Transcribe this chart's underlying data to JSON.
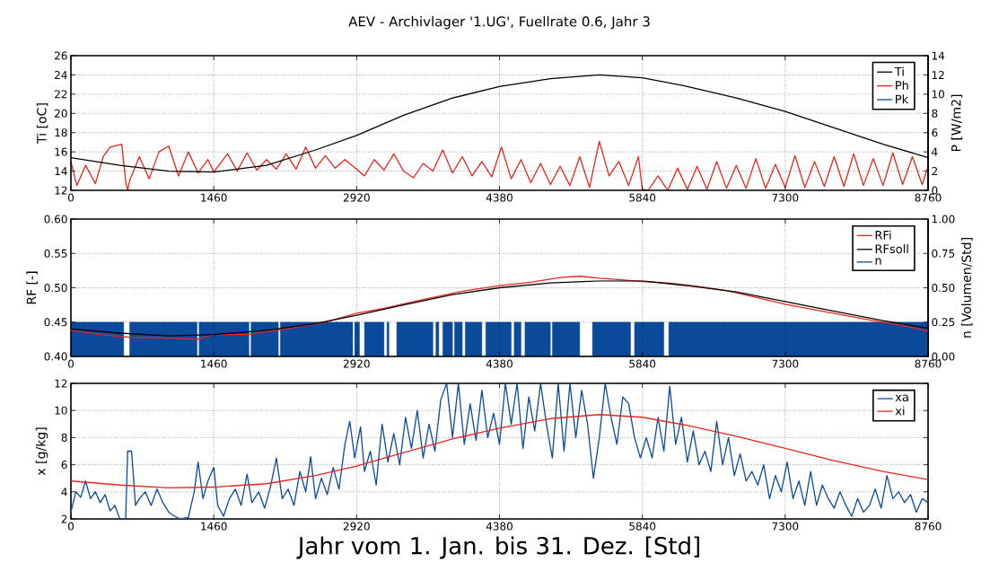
{
  "chart_data": [
    {
      "type": "line",
      "title": "AEV - Archivlager '1.UG', Fuellrate 0.6,  Jahr 3",
      "ylabel": "Ti  [oC]",
      "y2label": "P  [W/m2]",
      "xlim": [
        0,
        8760
      ],
      "xticks": [
        0,
        1460,
        2920,
        4380,
        5840,
        7300,
        8760
      ],
      "ylim": [
        12,
        26
      ],
      "yticks": [
        12,
        14,
        16,
        18,
        20,
        22,
        24,
        26
      ],
      "y2lim": [
        0,
        14
      ],
      "y2ticks": [
        0,
        2,
        4,
        6,
        8,
        10,
        12,
        14
      ],
      "grid": true,
      "legend": "top right",
      "series": [
        {
          "name": "Ti",
          "color": "#000000",
          "x": [
            0,
            500,
            1000,
            1460,
            2000,
            2500,
            2920,
            3400,
            3900,
            4380,
            4900,
            5400,
            5840,
            6300,
            6800,
            7300,
            7800,
            8300,
            8760
          ],
          "values": [
            15.4,
            14.6,
            14.0,
            13.9,
            14.6,
            16.2,
            17.7,
            19.8,
            21.6,
            22.8,
            23.6,
            24.0,
            23.7,
            22.8,
            21.6,
            20.2,
            18.5,
            16.8,
            15.4
          ]
        },
        {
          "name": "Ph",
          "color": "#e8251c",
          "axis": "y2",
          "x": [
            0,
            60,
            150,
            250,
            330,
            400,
            520,
            560,
            580,
            600,
            700,
            800,
            900,
            1000,
            1100,
            1200,
            1300,
            1400,
            1460,
            1600,
            1700,
            1800,
            1900,
            2000,
            2100,
            2200,
            2300,
            2400,
            2500,
            2600,
            2700,
            2800,
            2920,
            3000,
            3100,
            3200,
            3300,
            3400,
            3500,
            3600,
            3700,
            3800,
            3900,
            4000,
            4100,
            4200,
            4300,
            4400,
            4500,
            4600,
            4700,
            4800,
            4900,
            5000,
            5100,
            5200,
            5300,
            5400,
            5500,
            5600,
            5700,
            5800,
            5840,
            5900,
            6000,
            6100,
            6200,
            6300,
            6400,
            6500,
            6600,
            6700,
            6800,
            6900,
            7000,
            7100,
            7200,
            7300,
            7400,
            7500,
            7600,
            7700,
            7800,
            7900,
            8000,
            8100,
            8200,
            8300,
            8400,
            8500,
            8600,
            8700,
            8760
          ],
          "values": [
            3.0,
            0.5,
            2.6,
            0.7,
            3.5,
            4.5,
            4.8,
            0.9,
            0,
            1.0,
            3.5,
            1.2,
            4.0,
            4.6,
            1.5,
            4.0,
            1.8,
            3.2,
            1.9,
            3.8,
            2.0,
            3.9,
            2.1,
            3.2,
            2.2,
            3.8,
            2.2,
            4.5,
            2.3,
            3.6,
            2.3,
            3.2,
            2.2,
            1.5,
            3.2,
            2.1,
            3.8,
            2.0,
            1.3,
            2.8,
            2.0,
            4.2,
            1.8,
            3.5,
            1.5,
            3.0,
            1.4,
            4.5,
            1.2,
            3.2,
            0.8,
            2.8,
            0.6,
            2.5,
            0.5,
            3.5,
            0.3,
            5.1,
            1.5,
            3.0,
            0.5,
            3.5,
            0.1,
            0,
            1.5,
            0,
            2.3,
            0.1,
            2.5,
            0.1,
            3.0,
            0.2,
            2.6,
            0.2,
            3.3,
            0.2,
            2.7,
            0.3,
            3.6,
            0.3,
            3.0,
            0.4,
            3.5,
            0.4,
            3.8,
            0.5,
            3.3,
            0.5,
            3.9,
            0.6,
            3.5,
            0.6,
            2.5
          ]
        },
        {
          "name": "Pk",
          "color": "#0b4a9b",
          "axis": "y2"
        }
      ]
    },
    {
      "type": "line",
      "ylabel": "RF  [-]",
      "y2label": "n  [Volumen/Std]",
      "xlim": [
        0,
        8760
      ],
      "xticks": [
        0,
        1460,
        2920,
        4380,
        5840,
        7300,
        8760
      ],
      "ylim": [
        0.4,
        0.6
      ],
      "yticks": [
        {
          "value": 0.4,
          "label": "0.40"
        },
        {
          "value": 0.45,
          "label": "0.45"
        },
        {
          "value": 0.5,
          "label": "0.50"
        },
        {
          "value": 0.55,
          "label": "0.55"
        },
        {
          "value": 0.6,
          "label": "0.60"
        }
      ],
      "y2lim": [
        0,
        1
      ],
      "y2ticks": [
        {
          "value": 0,
          "label": "0.00"
        },
        {
          "value": 0.25,
          "label": "0.25"
        },
        {
          "value": 0.5,
          "label": "0.50"
        },
        {
          "value": 0.75,
          "label": "0.75"
        },
        {
          "value": 1,
          "label": "1.00"
        }
      ],
      "grid": true,
      "legend": "top right",
      "series": [
        {
          "name": "RFi",
          "color": "#e8251c",
          "x": [
            0,
            300,
            600,
            1000,
            1300,
            1460,
            1800,
            2200,
            2600,
            2920,
            3200,
            3600,
            4000,
            4380,
            4700,
            5000,
            5200,
            5400,
            5600,
            5840,
            6100,
            6400,
            6700,
            7000,
            7300,
            7600,
            7900,
            8200,
            8500,
            8760
          ],
          "values": [
            0.438,
            0.432,
            0.428,
            0.427,
            0.425,
            0.432,
            0.432,
            0.44,
            0.45,
            0.463,
            0.47,
            0.483,
            0.495,
            0.503,
            0.508,
            0.515,
            0.517,
            0.514,
            0.512,
            0.509,
            0.507,
            0.502,
            0.496,
            0.486,
            0.476,
            0.468,
            0.46,
            0.452,
            0.445,
            0.437
          ]
        },
        {
          "name": "RFsoll",
          "color": "#000000",
          "x": [
            0,
            500,
            1000,
            1460,
            2000,
            2500,
            2920,
            3400,
            3900,
            4380,
            4900,
            5400,
            5840,
            6300,
            6800,
            7300,
            7800,
            8300,
            8760
          ],
          "values": [
            0.44,
            0.434,
            0.43,
            0.432,
            0.438,
            0.448,
            0.46,
            0.475,
            0.49,
            0.5,
            0.507,
            0.51,
            0.51,
            0.503,
            0.494,
            0.48,
            0.466,
            0.452,
            0.441
          ]
        },
        {
          "name": "n",
          "color": "#0b4a9b",
          "type": "area",
          "axis": "y2",
          "x": [
            0,
            540,
            540,
            600,
            600,
            1290,
            1290,
            1310,
            1310,
            1820,
            1820,
            1840,
            1840,
            2120,
            2120,
            2140,
            2140,
            2880,
            2880,
            2900,
            2900,
            2950,
            2950,
            3000,
            3000,
            3200,
            3200,
            3230,
            3230,
            3250,
            3250,
            3330,
            3330,
            3700,
            3700,
            3730,
            3730,
            3760,
            3760,
            3800,
            3800,
            3900,
            3900,
            3920,
            3920,
            4000,
            4000,
            4030,
            4030,
            4200,
            4200,
            4240,
            4240,
            4500,
            4500,
            4530,
            4530,
            4600,
            4600,
            4640,
            4640,
            4900,
            4900,
            4920,
            4920,
            5200,
            5200,
            5330,
            5330,
            5720,
            5720,
            5760,
            5760,
            6060,
            6060,
            6110,
            6110,
            8760
          ],
          "values": [
            0.25,
            0.25,
            0,
            0,
            0.25,
            0.25,
            0,
            0,
            0.25,
            0.25,
            0,
            0,
            0.25,
            0.25,
            0,
            0,
            0.25,
            0.25,
            0,
            0,
            0.25,
            0.25,
            0,
            0,
            0.25,
            0.25,
            0,
            0,
            0.25,
            0.25,
            0,
            0,
            0.25,
            0.25,
            0,
            0,
            0.25,
            0.25,
            0,
            0,
            0.25,
            0.25,
            0,
            0,
            0.25,
            0.25,
            0,
            0,
            0.25,
            0.25,
            0,
            0,
            0.25,
            0.25,
            0,
            0,
            0.25,
            0.25,
            0,
            0,
            0.25,
            0.25,
            0,
            0,
            0.25,
            0.25,
            0,
            0,
            0.25,
            0.25,
            0,
            0,
            0.25,
            0.25,
            0,
            0,
            0.25,
            0.25
          ]
        }
      ]
    },
    {
      "type": "line",
      "ylabel": "x  [g/kg]",
      "xlabel": "Jahr vom 1. Jan. bis 31. Dez.  [Std]",
      "xlim": [
        0,
        8760
      ],
      "xticks": [
        0,
        1460,
        2920,
        4380,
        5840,
        7300,
        8760
      ],
      "ylim": [
        2,
        12
      ],
      "yticks": [
        2,
        4,
        6,
        8,
        10,
        12
      ],
      "grid": true,
      "legend": "top right",
      "series": [
        {
          "name": "xa",
          "color": "#0b4a9b",
          "x": [
            0,
            50,
            100,
            150,
            200,
            250,
            300,
            350,
            400,
            450,
            500,
            560,
            580,
            620,
            660,
            700,
            760,
            820,
            880,
            940,
            1000,
            1060,
            1120,
            1200,
            1260,
            1300,
            1350,
            1400,
            1460,
            1500,
            1560,
            1620,
            1680,
            1740,
            1800,
            1850,
            1920,
            1980,
            2040,
            2100,
            2160,
            2220,
            2280,
            2340,
            2400,
            2450,
            2500,
            2560,
            2620,
            2680,
            2740,
            2800,
            2850,
            2900,
            2960,
            3000,
            3060,
            3120,
            3180,
            3240,
            3300,
            3360,
            3420,
            3480,
            3540,
            3600,
            3660,
            3720,
            3780,
            3840,
            3900,
            3960,
            4020,
            4080,
            4140,
            4200,
            4260,
            4320,
            4380,
            4440,
            4500,
            4560,
            4620,
            4680,
            4740,
            4800,
            4860,
            4920,
            4980,
            5040,
            5100,
            5160,
            5220,
            5280,
            5340,
            5400,
            5460,
            5520,
            5580,
            5640,
            5700,
            5760,
            5820,
            5880,
            5940,
            6000,
            6060,
            6120,
            6180,
            6240,
            6300,
            6360,
            6420,
            6480,
            6540,
            6600,
            6660,
            6720,
            6780,
            6840,
            6900,
            6960,
            7020,
            7080,
            7140,
            7200,
            7260,
            7320,
            7380,
            7440,
            7500,
            7560,
            7620,
            7680,
            7740,
            7800,
            7860,
            7920,
            7980,
            8040,
            8100,
            8160,
            8220,
            8280,
            8340,
            8400,
            8460,
            8520,
            8580,
            8640,
            8700,
            8760
          ],
          "values": [
            2.5,
            4.0,
            3.6,
            4.8,
            3.5,
            4.0,
            3.2,
            3.8,
            2.6,
            3.0,
            2.0,
            2.0,
            7.0,
            7.0,
            3.0,
            3.5,
            4.0,
            3.0,
            4.2,
            3.2,
            2.5,
            2.2,
            2.0,
            2.1,
            4.0,
            6.2,
            3.5,
            4.8,
            5.8,
            3.0,
            2.2,
            3.5,
            4.2,
            3.0,
            5.3,
            3.2,
            4.0,
            2.8,
            4.4,
            6.5,
            3.5,
            4.2,
            3.0,
            5.5,
            4.0,
            6.6,
            3.5,
            5.0,
            3.8,
            5.8,
            4.2,
            7.5,
            9.2,
            6.5,
            8.8,
            5.5,
            7.0,
            4.5,
            9.0,
            6.2,
            8.3,
            6.0,
            9.5,
            7.2,
            10.0,
            6.5,
            9.0,
            7.0,
            10.8,
            12,
            8.0,
            12,
            7.5,
            10.5,
            7.8,
            11.5,
            8.0,
            9.8,
            7.5,
            12,
            9.0,
            12,
            7.2,
            11.0,
            8.5,
            12,
            9.0,
            6.5,
            12,
            7.0,
            12,
            8.0,
            11.5,
            9.0,
            5.0,
            8.0,
            12,
            9.5,
            7.5,
            11.0,
            10.5,
            8.0,
            6.5,
            8.0,
            6.5,
            9.5,
            7.0,
            11.8,
            7.5,
            9.5,
            6.2,
            8.5,
            6.0,
            7.0,
            5.5,
            9.2,
            6.0,
            8.0,
            5.2,
            6.8,
            4.8,
            5.5,
            4.5,
            6.0,
            3.5,
            5.2,
            4.0,
            6.2,
            3.5,
            4.8,
            3.0,
            5.5,
            3.0,
            4.5,
            3.5,
            2.8,
            4.0,
            3.0,
            2.2,
            3.5,
            2.5,
            3.0,
            4.2,
            2.8,
            5.2,
            3.5,
            4.0,
            3.2,
            3.8,
            2.5,
            3.5,
            3.2
          ]
        },
        {
          "name": "xi",
          "color": "#e8251c",
          "x": [
            0,
            500,
            1000,
            1460,
            2000,
            2500,
            2920,
            3400,
            3900,
            4380,
            4900,
            5400,
            5840,
            6300,
            6800,
            7300,
            7800,
            8300,
            8760
          ],
          "values": [
            4.8,
            4.5,
            4.3,
            4.35,
            4.6,
            5.2,
            5.9,
            6.9,
            7.9,
            8.7,
            9.4,
            9.7,
            9.5,
            8.9,
            8.1,
            7.2,
            6.3,
            5.5,
            4.9
          ]
        }
      ]
    }
  ]
}
